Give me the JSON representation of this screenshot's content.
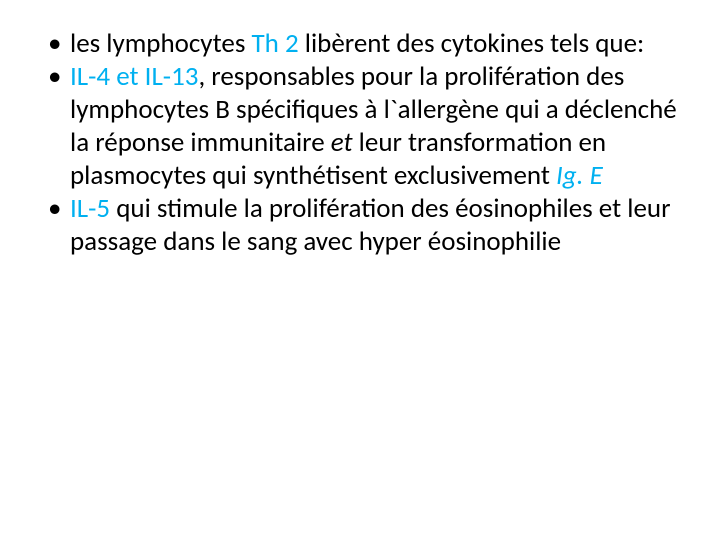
{
  "slide": {
    "background_color": "#ffffff",
    "text_color": "#000000",
    "accent_color": "#00b0f0",
    "font_family": "Calibri",
    "font_size_pt": 27,
    "bullets": [
      {
        "pre": "les lymphocytes ",
        "accent": "Th 2 ",
        "post": "libèrent des cytokines tels que:"
      },
      {
        "accent_lead": "IL-4 et IL-13",
        "mid1": ", responsables pour la prolifération des lymphocytes B spécifiques à l`allergène qui a déclenché la réponse immunitaire ",
        "italic1": "et",
        "mid2": " leur transformation en plasmocytes qui synthétisent exclusivement ",
        "accent_tail": "Ig. E"
      },
      {
        "space": " ",
        "accent_lead": "IL-5",
        "rest": " qui stimule la prolifération des éosinophiles et leur passage dans le sang avec hyper éosinophilie"
      }
    ]
  }
}
